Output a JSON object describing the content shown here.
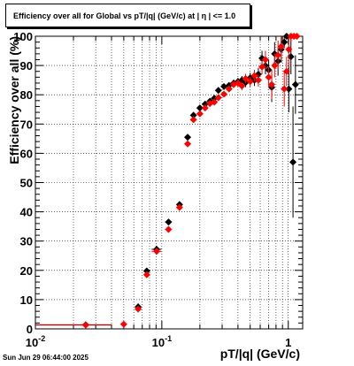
{
  "title": "Efficiency over all for Global vs pT/|q| (GeV/c) at |  η  | <= 1.0",
  "footer_date": "Sun Jun 29 06:44:00 2025",
  "colors": {
    "series_black": "#000000",
    "series_red": "#ff0000",
    "grid": "#000000"
  },
  "chart_data": {
    "type": "scatter",
    "title": "Efficiency over all for Global vs pT/|q| (GeV/c) at |  η  | <= 1.0",
    "xlabel": "pT/|q| (GeV/c)",
    "ylabel": "Efficiency over all (%)",
    "xscale": "log",
    "xlim": [
      0.01,
      1.3
    ],
    "ylim": [
      0,
      100
    ],
    "grid": true,
    "legend": "none",
    "x_tick_labels": [
      {
        "value": 0.01,
        "base": "10",
        "exp": "-2"
      },
      {
        "value": 0.1,
        "base": "10",
        "exp": "-1"
      },
      {
        "value": 1,
        "base": "1",
        "exp": ""
      }
    ],
    "y_tick_labels": [
      "0",
      "10",
      "20",
      "30",
      "40",
      "50",
      "60",
      "70",
      "80",
      "90",
      "100"
    ],
    "series": [
      {
        "color": "#000000",
        "points": [
          {
            "x": 0.025,
            "y": 1.4,
            "xerr": 0.015
          },
          {
            "x": 0.065,
            "y": 7.5,
            "yerr": 1.2
          },
          {
            "x": 0.076,
            "y": 19.8,
            "yerr": 1.0
          },
          {
            "x": 0.091,
            "y": 27.2,
            "xerr": 0.008,
            "yerr": 1.0
          },
          {
            "x": 0.113,
            "y": 36.5,
            "xerr": 0.007,
            "yerr": 1.0
          },
          {
            "x": 0.138,
            "y": 42.5,
            "yerr": 1.0
          },
          {
            "x": 0.16,
            "y": 65.5,
            "yerr": 1.0
          },
          {
            "x": 0.178,
            "y": 73.0,
            "yerr": 1.0
          },
          {
            "x": 0.2,
            "y": 75.5,
            "yerr": 1.0
          },
          {
            "x": 0.22,
            "y": 76.8,
            "yerr": 1.0
          },
          {
            "x": 0.24,
            "y": 77.8,
            "yerr": 1.0
          },
          {
            "x": 0.26,
            "y": 78.8,
            "yerr": 1.0
          },
          {
            "x": 0.28,
            "y": 81.5,
            "yerr": 1.0
          },
          {
            "x": 0.31,
            "y": 82.8,
            "yerr": 1.0
          },
          {
            "x": 0.34,
            "y": 83.2,
            "yerr": 1.0
          },
          {
            "x": 0.37,
            "y": 84.0,
            "yerr": 1.2
          },
          {
            "x": 0.4,
            "y": 84.5,
            "yerr": 1.3
          },
          {
            "x": 0.43,
            "y": 85.0,
            "yerr": 1.4
          },
          {
            "x": 0.46,
            "y": 84.2,
            "yerr": 1.6
          },
          {
            "x": 0.5,
            "y": 85.8,
            "yerr": 1.7
          },
          {
            "x": 0.54,
            "y": 85.0,
            "yerr": 2.0
          },
          {
            "x": 0.58,
            "y": 87.0,
            "yerr": 2.2
          },
          {
            "x": 0.62,
            "y": 92.5,
            "yerr": 2.5
          },
          {
            "x": 0.66,
            "y": 90.0,
            "yerr": 3.0
          },
          {
            "x": 0.7,
            "y": 88.5,
            "yerr": 3.5
          },
          {
            "x": 0.74,
            "y": 82.5,
            "yerr": 5.0
          },
          {
            "x": 0.78,
            "y": 94.0,
            "yerr": 4.0
          },
          {
            "x": 0.83,
            "y": 91.5,
            "yerr": 5.0
          },
          {
            "x": 0.88,
            "y": 95.5,
            "yerr": 4.5
          },
          {
            "x": 0.93,
            "y": 98.0,
            "yerr": 2.0
          },
          {
            "x": 0.97,
            "y": 100.0,
            "yerr": 1.0
          },
          {
            "x": 1.01,
            "y": 82.0,
            "yerr": 8.0
          },
          {
            "x": 1.05,
            "y": 93.0,
            "yerr": 6.0
          },
          {
            "x": 1.09,
            "y": 57.0,
            "yerr": 19.0
          },
          {
            "x": 1.14,
            "y": 83.5,
            "yerr": 10.0
          }
        ]
      },
      {
        "color": "#ff0000",
        "points": [
          {
            "x": 0.025,
            "y": 1.3,
            "xerr": 0.015
          },
          {
            "x": 0.05,
            "y": 1.6
          },
          {
            "x": 0.065,
            "y": 6.8,
            "yerr": 1.2
          },
          {
            "x": 0.076,
            "y": 18.5,
            "yerr": 1.0
          },
          {
            "x": 0.091,
            "y": 26.5,
            "xerr": 0.008,
            "yerr": 1.0
          },
          {
            "x": 0.113,
            "y": 34.0,
            "xerr": 0.007,
            "yerr": 1.0
          },
          {
            "x": 0.138,
            "y": 41.5,
            "yerr": 1.0
          },
          {
            "x": 0.16,
            "y": 63.2,
            "yerr": 1.0
          },
          {
            "x": 0.178,
            "y": 71.5,
            "yerr": 1.0
          },
          {
            "x": 0.2,
            "y": 73.5,
            "yerr": 1.0
          },
          {
            "x": 0.22,
            "y": 75.5,
            "yerr": 1.0
          },
          {
            "x": 0.24,
            "y": 77.0,
            "yerr": 1.0
          },
          {
            "x": 0.26,
            "y": 77.5,
            "yerr": 1.0
          },
          {
            "x": 0.28,
            "y": 79.0,
            "yerr": 1.0
          },
          {
            "x": 0.31,
            "y": 80.2,
            "yerr": 1.0
          },
          {
            "x": 0.34,
            "y": 82.0,
            "yerr": 1.0
          },
          {
            "x": 0.37,
            "y": 83.5,
            "yerr": 1.2
          },
          {
            "x": 0.4,
            "y": 84.0,
            "yerr": 1.3
          },
          {
            "x": 0.43,
            "y": 83.0,
            "yerr": 1.4
          },
          {
            "x": 0.46,
            "y": 85.5,
            "yerr": 1.6
          },
          {
            "x": 0.5,
            "y": 84.5,
            "yerr": 1.7
          },
          {
            "x": 0.54,
            "y": 86.5,
            "yerr": 2.0
          },
          {
            "x": 0.58,
            "y": 85.0,
            "yerr": 2.2
          },
          {
            "x": 0.62,
            "y": 89.5,
            "yerr": 2.5
          },
          {
            "x": 0.66,
            "y": 92.0,
            "yerr": 3.0
          },
          {
            "x": 0.7,
            "y": 86.0,
            "yerr": 3.5
          },
          {
            "x": 0.74,
            "y": 83.5,
            "yerr": 5.0
          },
          {
            "x": 0.78,
            "y": 90.0,
            "yerr": 4.0
          },
          {
            "x": 0.83,
            "y": 93.5,
            "yerr": 5.0
          },
          {
            "x": 0.88,
            "y": 96.5,
            "yerr": 4.5
          },
          {
            "x": 0.93,
            "y": 82.0,
            "yerr": 6.0
          },
          {
            "x": 0.97,
            "y": 88.0,
            "yerr": 5.0
          },
          {
            "x": 1.01,
            "y": 95.5,
            "yerr": 6.0
          },
          {
            "x": 1.05,
            "y": 100.0,
            "yerr": 2.0
          },
          {
            "x": 1.11,
            "y": 100.0,
            "yerr": 1.0
          },
          {
            "x": 1.17,
            "y": 100.0,
            "yerr": 1.0
          }
        ]
      }
    ]
  }
}
